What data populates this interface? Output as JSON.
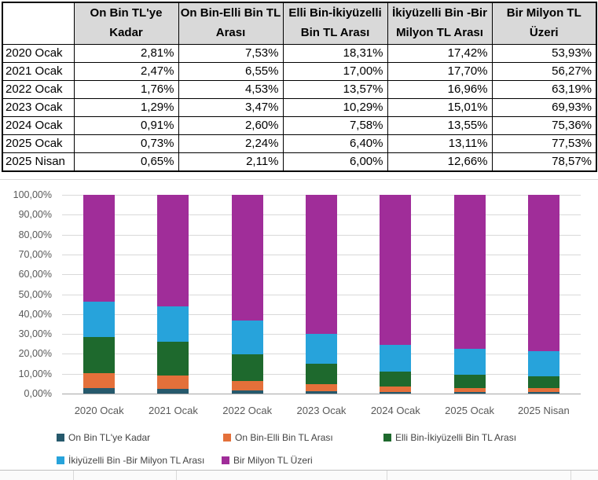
{
  "table": {
    "corner_label": "",
    "headers": [
      "On Bin TL'ye Kadar",
      "On Bin-Elli Bin TL Arası",
      "Elli Bin-İkiyüzelli Bin TL Arası",
      "İkiyüzelli Bin -Bir Milyon  TL Arası",
      "Bir Milyon TL Üzeri"
    ],
    "rows": [
      {
        "label": "2020 Ocak",
        "values": [
          "2,81%",
          "7,53%",
          "18,31%",
          "17,42%",
          "53,93%"
        ]
      },
      {
        "label": "2021 Ocak",
        "values": [
          "2,47%",
          "6,55%",
          "17,00%",
          "17,70%",
          "56,27%"
        ]
      },
      {
        "label": "2022 Ocak",
        "values": [
          "1,76%",
          "4,53%",
          "13,57%",
          "16,96%",
          "63,19%"
        ]
      },
      {
        "label": "2023 Ocak",
        "values": [
          "1,29%",
          "3,47%",
          "10,29%",
          "15,01%",
          "69,93%"
        ]
      },
      {
        "label": "2024 Ocak",
        "values": [
          "0,91%",
          "2,60%",
          "7,58%",
          "13,55%",
          "75,36%"
        ]
      },
      {
        "label": "2025 Ocak",
        "values": [
          "0,73%",
          "2,24%",
          "6,40%",
          "13,11%",
          "77,53%"
        ]
      },
      {
        "label": "2025 Nisan",
        "values": [
          "0,65%",
          "2,11%",
          "6,00%",
          "12,66%",
          "78,57%"
        ]
      }
    ],
    "header_bg": "#D9D9D9",
    "border_color": "#000000"
  },
  "chart_data": {
    "type": "bar",
    "stacked": true,
    "stacked_to_100_percent": true,
    "categories": [
      "2020 Ocak",
      "2021 Ocak",
      "2022 Ocak",
      "2023 Ocak",
      "2024 Ocak",
      "2025 Ocak",
      "2025 Nisan"
    ],
    "series": [
      {
        "name": "On Bin TL'ye Kadar",
        "color": "#26596C",
        "values": [
          2.81,
          2.47,
          1.76,
          1.29,
          0.91,
          0.73,
          0.65
        ]
      },
      {
        "name": "On Bin-Elli Bin TL Arası",
        "color": "#E4703A",
        "values": [
          7.53,
          6.55,
          4.53,
          3.47,
          2.6,
          2.24,
          2.11
        ]
      },
      {
        "name": "Elli Bin-İkiyüzelli Bin TL Arası",
        "color": "#1E692D",
        "values": [
          18.31,
          17.0,
          13.57,
          10.29,
          7.58,
          6.4,
          6.0
        ]
      },
      {
        "name": "İkiyüzelli Bin -Bir Milyon  TL Arası",
        "color": "#27A3DB",
        "values": [
          17.42,
          17.7,
          16.96,
          15.01,
          13.55,
          13.11,
          12.66
        ]
      },
      {
        "name": "Bir Milyon TL Üzeri",
        "color": "#A02D99",
        "values": [
          53.93,
          56.27,
          63.19,
          69.93,
          75.36,
          77.53,
          78.57
        ]
      }
    ],
    "y_ticks": [
      "100,00%",
      "90,00%",
      "80,00%",
      "70,00%",
      "60,00%",
      "50,00%",
      "40,00%",
      "30,00%",
      "20,00%",
      "10,00%",
      "0,00%"
    ],
    "ylim": [
      0,
      100
    ],
    "xlabel": "",
    "ylabel": "",
    "title": "",
    "grid": true,
    "gridline_color": "#D9D9D9",
    "axis_color": "#A6A6A6",
    "tick_label_color": "#595959",
    "legend_position": "bottom",
    "legend_rows": [
      [
        0,
        1,
        2
      ],
      [
        3,
        4
      ]
    ]
  }
}
